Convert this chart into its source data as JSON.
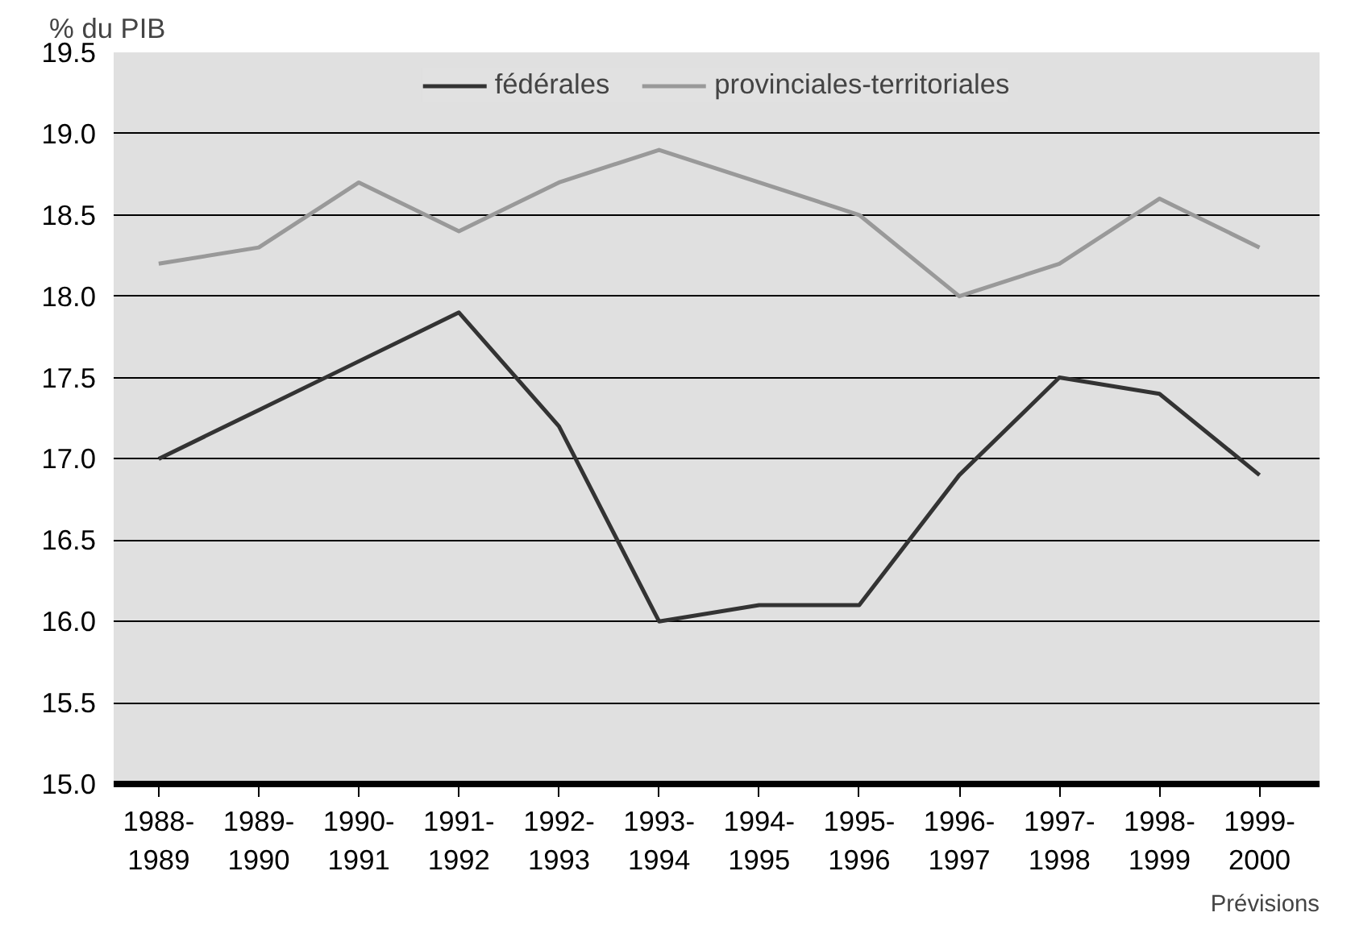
{
  "chart_data": {
    "type": "line",
    "ylabel": "% du PIB",
    "categories": [
      "1988-\n1989",
      "1989-\n1990",
      "1990-\n1991",
      "1991-\n1992",
      "1992-\n1993",
      "1993-\n1994",
      "1994-\n1995",
      "1995-\n1996",
      "1996-\n1997",
      "1997-\n1998",
      "1998-\n1999",
      "1999-\n2000"
    ],
    "series": [
      {
        "name": "fédérales",
        "color": "#333333",
        "values": [
          17.0,
          17.3,
          17.6,
          17.9,
          17.2,
          16.0,
          16.1,
          16.1,
          16.9,
          17.5,
          17.4,
          16.9
        ]
      },
      {
        "name": "provinciales-territoriales",
        "color": "#999999",
        "values": [
          18.2,
          18.3,
          18.7,
          18.4,
          18.7,
          18.9,
          18.7,
          18.5,
          18.0,
          18.2,
          18.6,
          18.3
        ]
      }
    ],
    "ylim": [
      15.0,
      19.5
    ],
    "yticks": [
      {
        "value": 15,
        "label": "15.0"
      },
      15.5,
      {
        "value": 16,
        "label": "16.0"
      },
      16.5,
      {
        "value": 17,
        "label": "17.0"
      },
      17.5,
      {
        "value": 18,
        "label": "18.0"
      },
      18.5,
      {
        "value": 19,
        "label": "19.0"
      },
      19.5
    ],
    "grid": "y",
    "legend": "top",
    "marker": "none",
    "line_style": "solid",
    "annotations": [
      "Prévisions"
    ]
  }
}
